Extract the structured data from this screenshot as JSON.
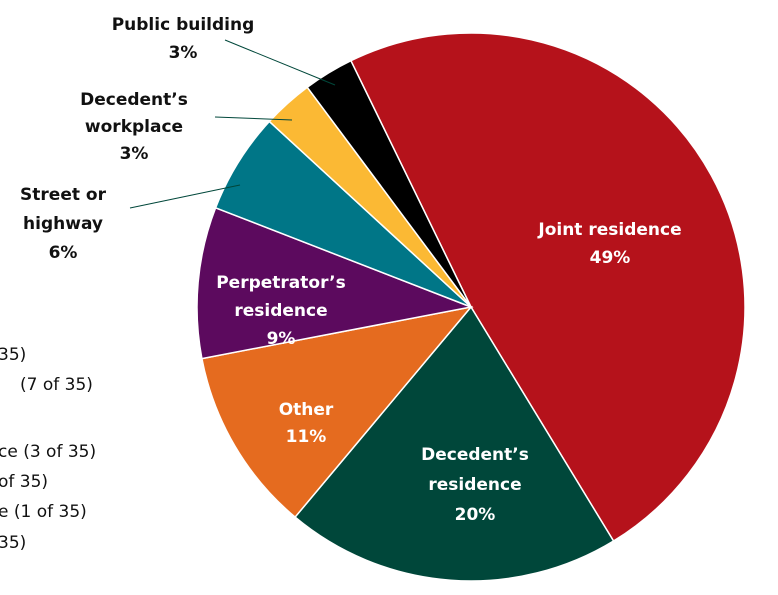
{
  "chart_data": {
    "type": "pie",
    "categories": [
      [
        "Joint residence"
      ],
      [
        "Decedent’s",
        "residence"
      ],
      [
        "Other"
      ],
      [
        "Perpetrator’s",
        "residence"
      ],
      [
        "Street or",
        "highway"
      ],
      [
        "Decedent’s",
        "workplace"
      ],
      [
        "Public building"
      ]
    ],
    "values": [
      49,
      20,
      11,
      9,
      6,
      3,
      3
    ],
    "value_labels": [
      "49%",
      "20%",
      "11%",
      "9%",
      "6%",
      "3%",
      "3%"
    ],
    "colors": [
      "#b5121b",
      "#00473a",
      "#e56b1f",
      "#5c0a5e",
      "#007687",
      "#fbb934",
      "#000000"
    ],
    "legend_fragments": [
      "35)",
      "(7 of 35)",
      "ce (3 of 35)",
      "of 35)",
      "e (1 of 35)",
      "35)"
    ]
  }
}
